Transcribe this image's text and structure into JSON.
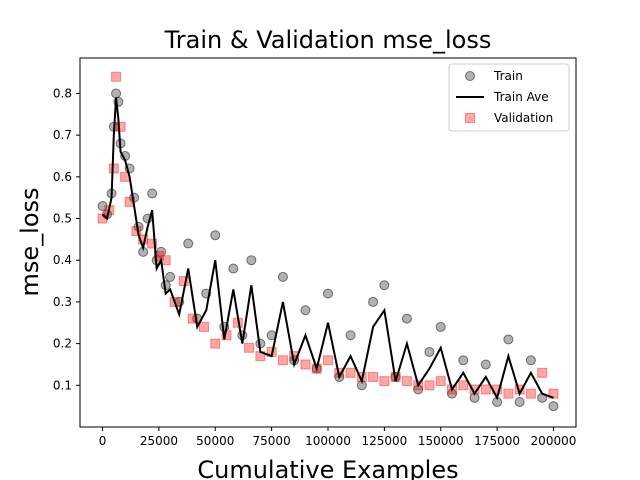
{
  "chart_data": {
    "type": "scatter",
    "title": "Train & Validation mse_loss",
    "xlabel": "Cumulative Examples",
    "ylabel": "mse_loss",
    "xlim": [
      -10000,
      210000
    ],
    "ylim": [
      0.0,
      0.885
    ],
    "xticks": [
      0,
      25000,
      50000,
      75000,
      100000,
      125000,
      150000,
      175000,
      200000
    ],
    "yticks": [
      0.1,
      0.2,
      0.3,
      0.4,
      0.5,
      0.6,
      0.7,
      0.8
    ],
    "grid": false,
    "legend": {
      "placement": "top-right",
      "entries": [
        "Train",
        "Train Ave",
        "Validation"
      ]
    },
    "colors": {
      "train": "#000000",
      "train_ave": "#000000",
      "validation": "#ff0000"
    },
    "series": [
      {
        "name": "Train",
        "marker": "circle",
        "x": [
          0,
          2000,
          4000,
          5000,
          6000,
          7000,
          8000,
          10000,
          12000,
          14000,
          16000,
          18000,
          20000,
          22000,
          24000,
          26000,
          28000,
          30000,
          34000,
          38000,
          42000,
          46000,
          50000,
          54000,
          58000,
          62000,
          66000,
          70000,
          75000,
          80000,
          85000,
          90000,
          95000,
          100000,
          105000,
          110000,
          115000,
          120000,
          125000,
          130000,
          135000,
          140000,
          145000,
          150000,
          155000,
          160000,
          165000,
          170000,
          175000,
          180000,
          185000,
          190000,
          195000,
          200000
        ],
        "y": [
          0.53,
          0.51,
          0.56,
          0.72,
          0.8,
          0.78,
          0.68,
          0.65,
          0.62,
          0.55,
          0.48,
          0.42,
          0.5,
          0.56,
          0.4,
          0.42,
          0.34,
          0.36,
          0.3,
          0.44,
          0.26,
          0.32,
          0.46,
          0.24,
          0.38,
          0.22,
          0.4,
          0.2,
          0.22,
          0.36,
          0.16,
          0.28,
          0.14,
          0.32,
          0.12,
          0.22,
          0.1,
          0.3,
          0.34,
          0.12,
          0.26,
          0.09,
          0.18,
          0.24,
          0.08,
          0.16,
          0.07,
          0.15,
          0.06,
          0.21,
          0.06,
          0.16,
          0.07,
          0.05
        ]
      },
      {
        "name": "Train Ave",
        "marker": "line",
        "x": [
          0,
          2000,
          4000,
          5000,
          6000,
          7000,
          8000,
          10000,
          12000,
          14000,
          16000,
          18000,
          20000,
          22000,
          24000,
          26000,
          28000,
          30000,
          34000,
          38000,
          42000,
          46000,
          50000,
          54000,
          58000,
          62000,
          66000,
          70000,
          75000,
          80000,
          85000,
          90000,
          95000,
          100000,
          105000,
          110000,
          115000,
          120000,
          125000,
          130000,
          135000,
          140000,
          145000,
          150000,
          155000,
          160000,
          165000,
          170000,
          175000,
          180000,
          185000,
          190000,
          195000,
          200000
        ],
        "y": [
          0.51,
          0.5,
          0.55,
          0.7,
          0.79,
          0.74,
          0.66,
          0.64,
          0.6,
          0.53,
          0.46,
          0.43,
          0.48,
          0.52,
          0.38,
          0.4,
          0.32,
          0.33,
          0.27,
          0.38,
          0.24,
          0.28,
          0.4,
          0.21,
          0.33,
          0.2,
          0.34,
          0.18,
          0.17,
          0.3,
          0.15,
          0.22,
          0.14,
          0.25,
          0.12,
          0.17,
          0.11,
          0.24,
          0.28,
          0.11,
          0.2,
          0.1,
          0.14,
          0.19,
          0.09,
          0.13,
          0.08,
          0.12,
          0.07,
          0.17,
          0.08,
          0.13,
          0.08,
          0.07
        ]
      },
      {
        "name": "Validation",
        "marker": "square",
        "x": [
          0,
          3000,
          5000,
          6000,
          8000,
          10000,
          12000,
          15000,
          18000,
          22000,
          25000,
          28000,
          32000,
          36000,
          40000,
          45000,
          50000,
          55000,
          60000,
          65000,
          70000,
          75000,
          80000,
          85000,
          90000,
          95000,
          100000,
          105000,
          110000,
          115000,
          120000,
          125000,
          130000,
          135000,
          140000,
          145000,
          150000,
          155000,
          160000,
          165000,
          170000,
          175000,
          180000,
          185000,
          190000,
          195000,
          200000
        ],
        "y": [
          0.5,
          0.52,
          0.62,
          0.84,
          0.72,
          0.6,
          0.54,
          0.47,
          0.45,
          0.44,
          0.41,
          0.4,
          0.3,
          0.35,
          0.26,
          0.24,
          0.2,
          0.22,
          0.25,
          0.19,
          0.17,
          0.18,
          0.16,
          0.17,
          0.15,
          0.14,
          0.16,
          0.13,
          0.13,
          0.12,
          0.12,
          0.11,
          0.12,
          0.11,
          0.1,
          0.1,
          0.11,
          0.09,
          0.1,
          0.09,
          0.09,
          0.09,
          0.08,
          0.09,
          0.08,
          0.13,
          0.08
        ]
      }
    ]
  }
}
